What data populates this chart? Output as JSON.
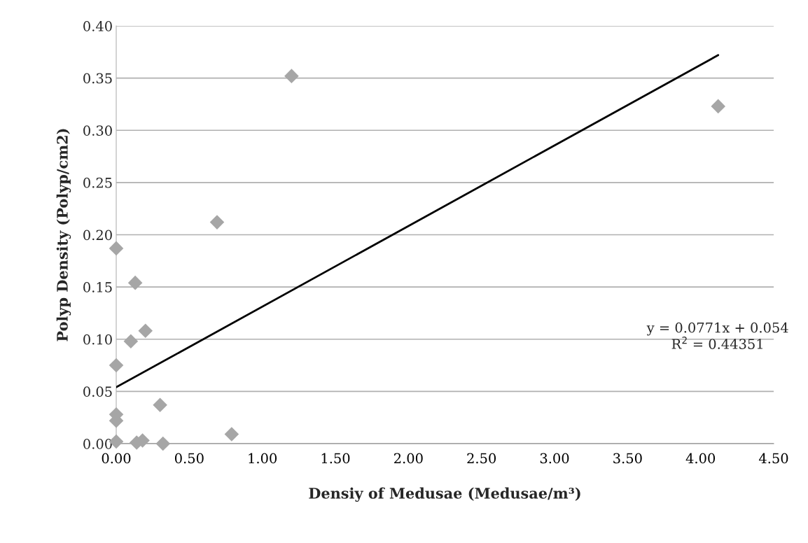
{
  "chart_data": {
    "type": "scatter",
    "xlabel": "Densiy of Medusae (Medusae/m³)",
    "ylabel": "Polyp Density (Polyp/cm2)",
    "xlim": [
      0,
      4.5
    ],
    "ylim": [
      0,
      0.4
    ],
    "xticks": [
      {
        "value": 0,
        "label": "0.00"
      },
      {
        "value": 0.5,
        "label": "0.50"
      },
      {
        "value": 1,
        "label": "1.00"
      },
      {
        "value": 1.5,
        "label": "1.50"
      },
      {
        "value": 2,
        "label": "2.00"
      },
      {
        "value": 2.5,
        "label": "2.50"
      },
      {
        "value": 3,
        "label": "3.00"
      },
      {
        "value": 3.5,
        "label": "3.50"
      },
      {
        "value": 4,
        "label": "4.00"
      },
      {
        "value": 4.5,
        "label": "4.50"
      }
    ],
    "yticks": [
      {
        "value": 0,
        "label": "0.00"
      },
      {
        "value": 0.05,
        "label": "0.05"
      },
      {
        "value": 0.1,
        "label": "0.10"
      },
      {
        "value": 0.15,
        "label": "0.15"
      },
      {
        "value": 0.2,
        "label": "0.20"
      },
      {
        "value": 0.25,
        "label": "0.25"
      },
      {
        "value": 0.3,
        "label": "0.30"
      },
      {
        "value": 0.35,
        "label": "0.35"
      },
      {
        "value": 0.4,
        "label": "0.40"
      }
    ],
    "grid": "y",
    "legend": false,
    "series": [
      {
        "marker": "diamond",
        "color": "#a6a6a6",
        "x": [
          0,
          0.13,
          0.1,
          0.2,
          0,
          0,
          0,
          0.3,
          0,
          0.14,
          0.18,
          0.32,
          0.79,
          0.69,
          1.2,
          4.12
        ],
        "values": [
          0.187,
          0.154,
          0.098,
          0.108,
          0.075,
          0.028,
          0.022,
          0.037,
          0.002,
          0.001,
          0.003,
          0.0,
          0.009,
          0.212,
          0.352,
          0.323
        ]
      },
      {
        "type": "line",
        "marker": "none",
        "line_style": "solid",
        "color": "#000000",
        "x": [
          0,
          4.12
        ],
        "values": [
          0.054,
          0.372
        ]
      }
    ],
    "annotations": [
      "y = 0.0771x + 0.054\nR$^{2}$ = 0.44351"
    ]
  }
}
